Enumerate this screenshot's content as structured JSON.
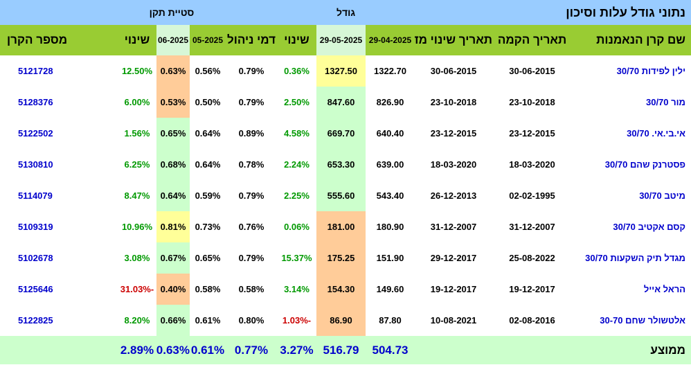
{
  "top": {
    "title": "נתוני גודל עלות וסיכון",
    "size_group": "גודל",
    "stdev_group": "סטיית תקן"
  },
  "headers": {
    "name": "שם קרן הנאמנות",
    "founded": "תאריך הקמה",
    "policy_change": "תאריך שינוי מדיניות",
    "size_apr": "29-04-2025",
    "size_may": "29-05-2025",
    "size_change": "שינוי",
    "mgmt_fee": "דמי ניהול",
    "std_may": "05-2025",
    "std_jun": "06-2025",
    "std_change": "שינוי",
    "fund_id": "מספר הקרן"
  },
  "rows": [
    {
      "name": "ילין לפידות 30/70",
      "founded": "30-06-2015",
      "policy": "30-06-2015",
      "size_apr": "1322.70",
      "size_may": "1327.50",
      "size_may_bg": "yellow",
      "size_change": "0.36%",
      "size_change_sign": "pos",
      "fee": "0.79%",
      "std_may": "0.56%",
      "std_jun": "0.63%",
      "std_jun_bg": "orange",
      "std_change": "12.50%",
      "std_change_sign": "pos",
      "fund_id": "5121728"
    },
    {
      "name": "מור 30/70",
      "founded": "23-10-2018",
      "policy": "23-10-2018",
      "size_apr": "826.90",
      "size_may": "847.60",
      "size_may_bg": "green",
      "size_change": "2.50%",
      "size_change_sign": "pos",
      "fee": "0.79%",
      "std_may": "0.50%",
      "std_jun": "0.53%",
      "std_jun_bg": "orange",
      "std_change": "6.00%",
      "std_change_sign": "pos",
      "fund_id": "5128376"
    },
    {
      "name": "אי.בי.אי. 30/70",
      "founded": "23-12-2015",
      "policy": "23-12-2015",
      "size_apr": "640.40",
      "size_may": "669.70",
      "size_may_bg": "green",
      "size_change": "4.58%",
      "size_change_sign": "pos",
      "fee": "0.89%",
      "std_may": "0.64%",
      "std_jun": "0.65%",
      "std_jun_bg": "green",
      "std_change": "1.56%",
      "std_change_sign": "pos",
      "fund_id": "5122502"
    },
    {
      "name": "פסטרנק שהם 30/70",
      "founded": "18-03-2020",
      "policy": "18-03-2020",
      "size_apr": "639.00",
      "size_may": "653.30",
      "size_may_bg": "green",
      "size_change": "2.24%",
      "size_change_sign": "pos",
      "fee": "0.78%",
      "std_may": "0.64%",
      "std_jun": "0.68%",
      "std_jun_bg": "green",
      "std_change": "6.25%",
      "std_change_sign": "pos",
      "fund_id": "5130810"
    },
    {
      "name": "מיטב 30/70",
      "founded": "02-02-1995",
      "policy": "26-12-2013",
      "size_apr": "543.40",
      "size_may": "555.60",
      "size_may_bg": "green",
      "size_change": "2.25%",
      "size_change_sign": "pos",
      "fee": "0.79%",
      "std_may": "0.59%",
      "std_jun": "0.64%",
      "std_jun_bg": "green",
      "std_change": "8.47%",
      "std_change_sign": "pos",
      "fund_id": "5114079"
    },
    {
      "name": "קסם אקטיב 30/70",
      "founded": "31-12-2007",
      "policy": "31-12-2007",
      "size_apr": "180.90",
      "size_may": "181.00",
      "size_may_bg": "orange",
      "size_change": "0.06%",
      "size_change_sign": "pos",
      "fee": "0.76%",
      "std_may": "0.73%",
      "std_jun": "0.81%",
      "std_jun_bg": "yellow",
      "std_change": "10.96%",
      "std_change_sign": "pos",
      "fund_id": "5109319"
    },
    {
      "name": "מגדל תיק השקעות 30/70",
      "founded": "25-08-2022",
      "policy": "29-12-2017",
      "size_apr": "151.90",
      "size_may": "175.25",
      "size_may_bg": "orange",
      "size_change": "15.37%",
      "size_change_sign": "pos",
      "fee": "0.79%",
      "std_may": "0.65%",
      "std_jun": "0.67%",
      "std_jun_bg": "green",
      "std_change": "3.08%",
      "std_change_sign": "pos",
      "fund_id": "5102678"
    },
    {
      "name": "הראל אייל",
      "founded": "19-12-2017",
      "policy": "19-12-2017",
      "size_apr": "149.60",
      "size_may": "154.30",
      "size_may_bg": "orange",
      "size_change": "3.14%",
      "size_change_sign": "pos",
      "fee": "0.58%",
      "std_may": "0.58%",
      "std_jun": "0.40%",
      "std_jun_bg": "orange",
      "std_change": "-31.03%",
      "std_change_sign": "neg",
      "fund_id": "5125646"
    },
    {
      "name": "אלטשולר שחם 30-70",
      "founded": "02-08-2016",
      "policy": "10-08-2021",
      "size_apr": "87.80",
      "size_may": "86.90",
      "size_may_bg": "orange",
      "size_change": "-1.03%",
      "size_change_sign": "neg",
      "fee": "0.80%",
      "std_may": "0.61%",
      "std_jun": "0.66%",
      "std_jun_bg": "green",
      "std_change": "8.20%",
      "std_change_sign": "pos",
      "fund_id": "5122825"
    }
  ],
  "average": {
    "label": "ממוצע",
    "size_apr": "504.73",
    "size_may": "516.79",
    "size_change": "3.27%",
    "fee": "0.77%",
    "std_may": "0.61%",
    "std_jun": "0.63%",
    "std_change": "2.89%"
  },
  "colors": {
    "header_green": "#99cc33",
    "top_blue": "#99ccff",
    "cell_green": "#ccffcc",
    "cell_yellow": "#ffff99",
    "cell_orange": "#ffcc99",
    "text_blue": "#0000cc",
    "text_green": "#009900",
    "text_red": "#cc0000"
  }
}
